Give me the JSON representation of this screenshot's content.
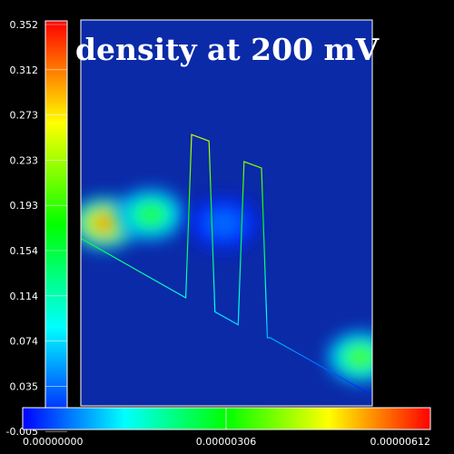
{
  "chart_data": {
    "type": "heatmap",
    "title": "density at 200 mV",
    "colorscale": [
      "#0000ff",
      "#00ffff",
      "#00ff00",
      "#ffff00",
      "#ff0000"
    ],
    "background_color": "#0a2aa8",
    "vertical_colorbar": {
      "tick_labels": [
        "0.352",
        "0.312",
        "0.273",
        "0.233",
        "0.193",
        "0.154",
        "0.114",
        "0.074",
        "0.035",
        "-0.005"
      ],
      "range": [
        -0.005,
        0.352
      ]
    },
    "horizontal_colorbar": {
      "tick_labels": [
        "0.00000000",
        "0.00000306",
        "0.00000612"
      ],
      "range": [
        0,
        6.12e-06
      ]
    },
    "density_blobs": [
      {
        "x": 0.08,
        "y": 0.164,
        "intensity": 0.95
      },
      {
        "x": 0.24,
        "y": 0.172,
        "intensity": 0.55
      },
      {
        "x": 0.49,
        "y": 0.164,
        "intensity": 0.12
      },
      {
        "x": 0.96,
        "y": 0.04,
        "intensity": 0.6
      }
    ],
    "potential_curve": {
      "x": [
        0.0,
        0.36,
        0.38,
        0.44,
        0.46,
        0.54,
        0.56,
        0.62,
        0.64,
        0.65,
        1.0
      ],
      "y": [
        0.15,
        0.095,
        0.246,
        0.24,
        0.082,
        0.07,
        0.221,
        0.215,
        0.058,
        0.058,
        0.005
      ]
    }
  }
}
